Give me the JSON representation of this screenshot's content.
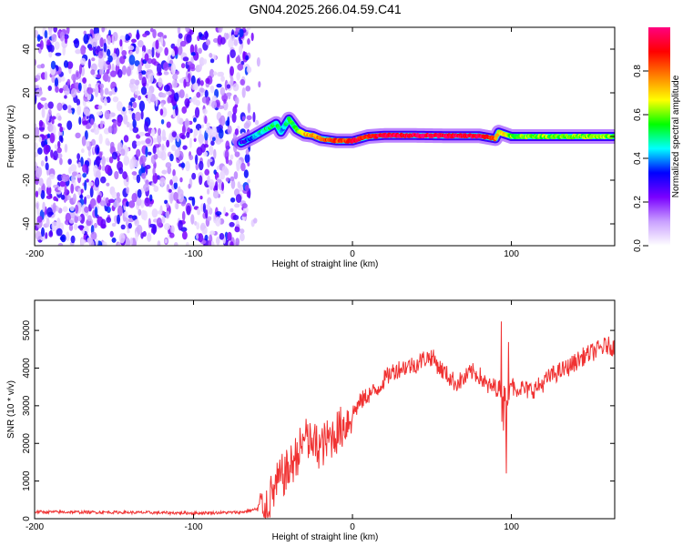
{
  "chart_data": [
    {
      "type": "heatmap",
      "title": "GN04.2025.266.04.59.C41",
      "xlabel": "Height of straight line (km)",
      "ylabel": "Frequency (Hz)",
      "xlim": [
        -200,
        165
      ],
      "ylim": [
        -50,
        50
      ],
      "xticks": [
        -200,
        -100,
        0,
        100
      ],
      "yticks": [
        -40,
        -20,
        0,
        20,
        40
      ],
      "colorbar": {
        "label": "Normalized spectral amplitude",
        "range": [
          0,
          1
        ],
        "ticks": [
          0.0,
          0.2,
          0.4,
          0.6,
          0.8
        ],
        "colors": [
          "#ffffff",
          "#c9a0ff",
          "#7a00ff",
          "#0000ff",
          "#00ffff",
          "#00ff00",
          "#ffff00",
          "#ff8000",
          "#ff0000",
          "#ff0080"
        ]
      },
      "noise_region_km": [
        -200,
        -65
      ],
      "signal_track": {
        "description": "Frequency ridge of the signal",
        "x": [
          -70,
          -62,
          -55,
          -48,
          -45,
          -40,
          -35,
          -30,
          -25,
          -20,
          -10,
          0,
          10,
          20,
          40,
          60,
          80,
          90,
          92,
          100,
          120,
          140,
          165
        ],
        "y": [
          -3,
          0,
          3,
          6,
          2,
          8,
          3,
          1,
          0.5,
          -1,
          -2,
          -2,
          0,
          0.5,
          0.5,
          0.3,
          0.3,
          -1,
          2,
          0,
          0,
          0,
          0
        ],
        "amplitude": [
          0.3,
          0.4,
          0.5,
          0.5,
          0.4,
          0.5,
          0.6,
          0.7,
          0.75,
          0.8,
          0.85,
          0.9,
          0.9,
          0.95,
          0.95,
          0.95,
          0.95,
          0.8,
          0.7,
          0.6,
          0.6,
          0.6,
          0.6
        ]
      }
    },
    {
      "type": "line",
      "title": "",
      "xlabel": "Height of straight line (km)",
      "ylabel": "SNR (10 * v/v)",
      "xlim": [
        -200,
        165
      ],
      "ylim": [
        0,
        5800
      ],
      "xticks": [
        -200,
        -100,
        0,
        100
      ],
      "yticks": [
        0,
        1000,
        2000,
        3000,
        4000,
        5000
      ],
      "color": "#f03232",
      "series": [
        {
          "name": "SNR",
          "x": [
            -200,
            -150,
            -100,
            -70,
            -55,
            -50,
            -45,
            -40,
            -35,
            -30,
            -25,
            -20,
            -15,
            -10,
            -5,
            0,
            5,
            10,
            15,
            20,
            25,
            30,
            35,
            40,
            45,
            50,
            55,
            60,
            65,
            70,
            75,
            80,
            85,
            90,
            95,
            98,
            100,
            102,
            105,
            110,
            115,
            120,
            125,
            130,
            135,
            140,
            145,
            150,
            155,
            160,
            165
          ],
          "y": [
            180,
            170,
            150,
            170,
            300,
            700,
            1100,
            1300,
            1700,
            2100,
            2000,
            1900,
            2100,
            2300,
            2500,
            2800,
            3100,
            3300,
            3400,
            3700,
            3900,
            4000,
            4050,
            4100,
            4250,
            4300,
            4000,
            3800,
            3600,
            3700,
            3900,
            3800,
            3500,
            3500,
            3400,
            3200,
            3700,
            3400,
            3500,
            3400,
            3450,
            3600,
            3800,
            3900,
            4000,
            4150,
            4300,
            4400,
            4500,
            4600,
            4550
          ]
        }
      ]
    }
  ]
}
